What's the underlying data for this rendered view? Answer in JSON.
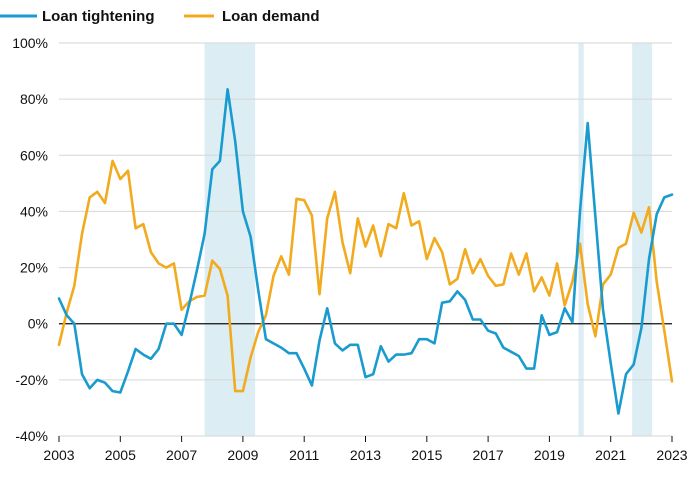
{
  "chart_data": {
    "type": "line",
    "title": "",
    "xlabel": "",
    "ylabel": "",
    "x_range": [
      2003,
      2023
    ],
    "ylim": [
      -40,
      100
    ],
    "x_ticks": [
      {
        "value": 2003,
        "label": "2003"
      },
      {
        "value": 2005,
        "label": "2005"
      },
      {
        "value": 2007,
        "label": "2007"
      },
      {
        "value": 2009,
        "label": "2009"
      },
      {
        "value": 2011,
        "label": "2011"
      },
      {
        "value": 2013,
        "label": "2013"
      },
      {
        "value": 2015,
        "label": "2015"
      },
      {
        "value": 2017,
        "label": "2017"
      },
      {
        "value": 2019,
        "label": "2019"
      },
      {
        "value": 2021,
        "label": "2021"
      },
      {
        "value": 2023,
        "label": "2023"
      }
    ],
    "y_ticks": [
      {
        "value": 100,
        "label": "100%"
      },
      {
        "value": 80,
        "label": "80%"
      },
      {
        "value": 60,
        "label": "60%"
      },
      {
        "value": 40,
        "label": "40%"
      },
      {
        "value": 20,
        "label": "20%"
      },
      {
        "value": 0,
        "label": "0%"
      },
      {
        "value": -20,
        "label": "-20%"
      },
      {
        "value": -40,
        "label": "-40%"
      }
    ],
    "grid": true,
    "legend_position": "top-left",
    "recession_bands": [
      {
        "start": 2007.75,
        "end": 2009.4
      },
      {
        "start": 2019.95,
        "end": 2020.12
      },
      {
        "start": 2021.7,
        "end": 2022.35
      }
    ],
    "series": [
      {
        "name": "Loan tightening",
        "color": "#1a9bcf",
        "points": [
          [
            2003.0,
            9
          ],
          [
            2003.25,
            3
          ],
          [
            2003.5,
            0
          ],
          [
            2003.75,
            -18
          ],
          [
            2004.0,
            -23
          ],
          [
            2004.25,
            -20
          ],
          [
            2004.5,
            -21
          ],
          [
            2004.75,
            -24
          ],
          [
            2005.0,
            -24.5
          ],
          [
            2005.25,
            -17
          ],
          [
            2005.5,
            -9
          ],
          [
            2005.75,
            -11
          ],
          [
            2006.0,
            -12.5
          ],
          [
            2006.25,
            -9
          ],
          [
            2006.5,
            0
          ],
          [
            2006.75,
            0
          ],
          [
            2007.0,
            -4
          ],
          [
            2007.25,
            7
          ],
          [
            2007.5,
            19
          ],
          [
            2007.75,
            32
          ],
          [
            2008.0,
            55
          ],
          [
            2008.25,
            58
          ],
          [
            2008.5,
            83.5
          ],
          [
            2008.75,
            65
          ],
          [
            2009.0,
            40
          ],
          [
            2009.25,
            31
          ],
          [
            2009.5,
            12
          ],
          [
            2009.75,
            -5.5
          ],
          [
            2010.0,
            -7
          ],
          [
            2010.25,
            -8.5
          ],
          [
            2010.5,
            -10.5
          ],
          [
            2010.75,
            -10.5
          ],
          [
            2011.0,
            -16
          ],
          [
            2011.25,
            -22
          ],
          [
            2011.5,
            -6
          ],
          [
            2011.75,
            5.5
          ],
          [
            2012.0,
            -7
          ],
          [
            2012.25,
            -9.5
          ],
          [
            2012.5,
            -7.5
          ],
          [
            2012.75,
            -7.5
          ],
          [
            2013.0,
            -19
          ],
          [
            2013.25,
            -18
          ],
          [
            2013.5,
            -8
          ],
          [
            2013.75,
            -13.5
          ],
          [
            2014.0,
            -11
          ],
          [
            2014.25,
            -11
          ],
          [
            2014.5,
            -10.5
          ],
          [
            2014.75,
            -5.5
          ],
          [
            2015.0,
            -5.5
          ],
          [
            2015.25,
            -7
          ],
          [
            2015.5,
            7.5
          ],
          [
            2015.75,
            8
          ],
          [
            2016.0,
            11.5
          ],
          [
            2016.25,
            8.5
          ],
          [
            2016.5,
            1.5
          ],
          [
            2016.75,
            1.5
          ],
          [
            2017.0,
            -2.5
          ],
          [
            2017.25,
            -3.5
          ],
          [
            2017.5,
            -8.5
          ],
          [
            2017.75,
            -10
          ],
          [
            2018.0,
            -11.5
          ],
          [
            2018.25,
            -16
          ],
          [
            2018.5,
            -16
          ],
          [
            2018.75,
            3
          ],
          [
            2019.0,
            -4
          ],
          [
            2019.25,
            -3
          ],
          [
            2019.5,
            5.5
          ],
          [
            2019.75,
            0.5
          ],
          [
            2020.0,
            40
          ],
          [
            2020.25,
            71.5
          ],
          [
            2020.5,
            38
          ],
          [
            2020.75,
            5
          ],
          [
            2021.0,
            -14
          ],
          [
            2021.25,
            -32
          ],
          [
            2021.5,
            -18
          ],
          [
            2021.75,
            -14.5
          ],
          [
            2022.0,
            -1.5
          ],
          [
            2022.25,
            23
          ],
          [
            2022.5,
            39
          ],
          [
            2022.75,
            45
          ],
          [
            2023.0,
            46
          ]
        ]
      },
      {
        "name": "Loan demand",
        "color": "#f2aa1e",
        "points": [
          [
            2003.0,
            -7.5
          ],
          [
            2003.25,
            4
          ],
          [
            2003.5,
            13.5
          ],
          [
            2003.75,
            32
          ],
          [
            2004.0,
            45
          ],
          [
            2004.25,
            47
          ],
          [
            2004.5,
            43
          ],
          [
            2004.75,
            58
          ],
          [
            2005.0,
            51.5
          ],
          [
            2005.25,
            54.5
          ],
          [
            2005.5,
            34
          ],
          [
            2005.75,
            35.5
          ],
          [
            2006.0,
            25.5
          ],
          [
            2006.25,
            21.5
          ],
          [
            2006.5,
            20
          ],
          [
            2006.75,
            21.5
          ],
          [
            2007.0,
            5
          ],
          [
            2007.25,
            8
          ],
          [
            2007.5,
            9.5
          ],
          [
            2007.75,
            10
          ],
          [
            2008.0,
            22.5
          ],
          [
            2008.25,
            19.5
          ],
          [
            2008.5,
            10
          ],
          [
            2008.75,
            -24
          ],
          [
            2009.0,
            -24
          ],
          [
            2009.25,
            -12
          ],
          [
            2009.5,
            -3
          ],
          [
            2009.75,
            3
          ],
          [
            2010.0,
            17
          ],
          [
            2010.25,
            24
          ],
          [
            2010.5,
            17.5
          ],
          [
            2010.75,
            44.5
          ],
          [
            2011.0,
            44
          ],
          [
            2011.25,
            38.5
          ],
          [
            2011.5,
            10.5
          ],
          [
            2011.75,
            37.5
          ],
          [
            2012.0,
            47
          ],
          [
            2012.25,
            29
          ],
          [
            2012.5,
            18
          ],
          [
            2012.75,
            37.5
          ],
          [
            2013.0,
            27.5
          ],
          [
            2013.25,
            35
          ],
          [
            2013.5,
            24
          ],
          [
            2013.75,
            35.5
          ],
          [
            2014.0,
            34
          ],
          [
            2014.25,
            46.5
          ],
          [
            2014.5,
            35
          ],
          [
            2014.75,
            36.5
          ],
          [
            2015.0,
            23
          ],
          [
            2015.25,
            30.5
          ],
          [
            2015.5,
            25.5
          ],
          [
            2015.75,
            14
          ],
          [
            2016.0,
            16
          ],
          [
            2016.25,
            26.5
          ],
          [
            2016.5,
            18
          ],
          [
            2016.75,
            23
          ],
          [
            2017.0,
            17
          ],
          [
            2017.25,
            13.5
          ],
          [
            2017.5,
            14
          ],
          [
            2017.75,
            25
          ],
          [
            2018.0,
            17.5
          ],
          [
            2018.25,
            25
          ],
          [
            2018.5,
            11.5
          ],
          [
            2018.75,
            16.5
          ],
          [
            2019.0,
            10
          ],
          [
            2019.25,
            21.5
          ],
          [
            2019.5,
            6.5
          ],
          [
            2019.75,
            15
          ],
          [
            2020.0,
            28.5
          ],
          [
            2020.25,
            7
          ],
          [
            2020.5,
            -4.5
          ],
          [
            2020.75,
            14
          ],
          [
            2021.0,
            17.5
          ],
          [
            2021.25,
            27
          ],
          [
            2021.5,
            28.5
          ],
          [
            2021.75,
            39.5
          ],
          [
            2022.0,
            32.5
          ],
          [
            2022.25,
            41.5
          ],
          [
            2022.5,
            15
          ],
          [
            2022.75,
            -2.5
          ],
          [
            2023.0,
            -20.5
          ]
        ]
      }
    ]
  }
}
